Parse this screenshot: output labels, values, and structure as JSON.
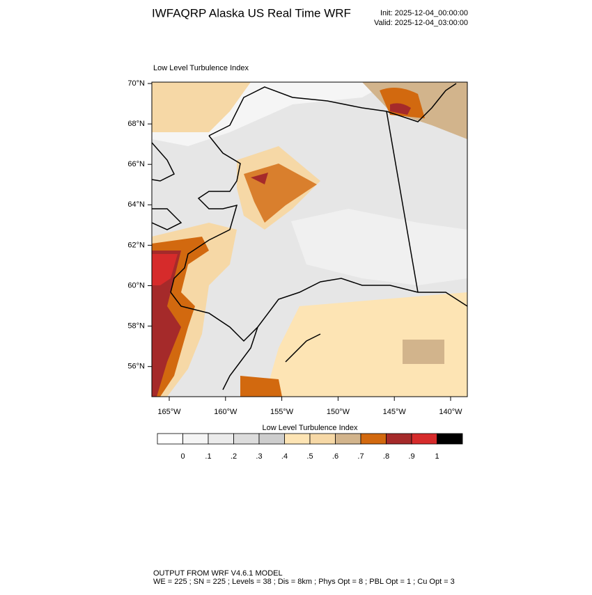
{
  "header": {
    "title": "IWFAQRP Alaska US Real Time WRF",
    "init": "Init: 2025-12-04_00:00:00",
    "valid": "Valid: 2025-12-04_03:00:00"
  },
  "map": {
    "title": "Low Level Turbulence Index",
    "lat_labels": [
      "70°N",
      "68°N",
      "66°N",
      "64°N",
      "62°N",
      "60°N",
      "58°N",
      "56°N"
    ],
    "lon_labels": [
      "165°W",
      "160°W",
      "155°W",
      "150°W",
      "145°W",
      "140°W"
    ]
  },
  "colorbar": {
    "title": "Low Level Turbulence Index",
    "colors": [
      "#ffffff",
      "#f5f5f5",
      "#ebebeb",
      "#dcdcdc",
      "#cdcdcd",
      "#fde4b4",
      "#f6d8a6",
      "#d2b48c",
      "#d2690f",
      "#a52a2a",
      "#d62b2b",
      "#000000"
    ],
    "labels": [
      "0",
      ".1",
      ".2",
      ".3",
      ".4",
      ".5",
      ".6",
      ".7",
      ".8",
      ".9",
      "1"
    ]
  },
  "footer": {
    "lines": [
      "OUTPUT FROM WRF V4.6.1 MODEL",
      "WE = 225 ; SN = 225 ; Levels = 38 ; Dis = 8km ; Phys Opt = 8 ; PBL Opt = 1 ; Cu Opt = 3"
    ]
  }
}
